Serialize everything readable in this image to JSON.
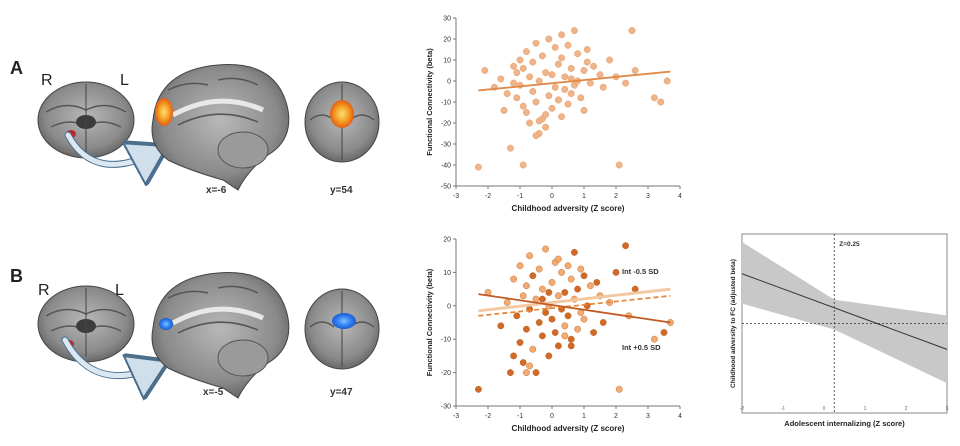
{
  "panels": [
    {
      "letter": "A",
      "left_label": "R",
      "right_label": "L",
      "sagittal_coord": "x=-6",
      "coronal_coord": "y=54",
      "blob_colors": [
        "#f59a1e",
        "#f7c243",
        "#e25d16"
      ],
      "seed_color": "#c0282b"
    },
    {
      "letter": "B",
      "left_label": "R",
      "right_label": "L",
      "sagittal_coord": "x=-5",
      "coronal_coord": "y=47",
      "blob_colors": [
        "#2f7ef2",
        "#4fa3ff",
        "#1b5fd0"
      ],
      "seed_color": "#c0282b"
    }
  ],
  "chart_data": [
    {
      "type": "scatter",
      "xlabel": "Childhood adversity (Z score)",
      "ylabel": "Functional Connectivity (beta)",
      "xlim": [
        -3,
        4
      ],
      "ylim": [
        -50,
        30
      ],
      "xticks": [
        "-3",
        "-2",
        "-1",
        "0",
        "1",
        "2",
        "3",
        "4"
      ],
      "yticks": [
        "30",
        "20",
        "10",
        "0",
        "-10",
        "-20",
        "-30",
        "-40",
        "-50"
      ],
      "point_color": "#f0b48a",
      "line_color": "#e08a4a",
      "fit": {
        "x": [
          -2.3,
          3.7
        ],
        "y": [
          -4.5,
          4.5
        ]
      },
      "x": [
        -2.3,
        -2.1,
        -1.8,
        -1.6,
        -1.5,
        -1.4,
        -1.3,
        -1.2,
        -1.2,
        -1.1,
        -1.0,
        -1.0,
        -0.9,
        -0.9,
        -0.8,
        -0.8,
        -0.7,
        -0.7,
        -0.6,
        -0.6,
        -0.5,
        -0.5,
        -0.4,
        -0.4,
        -0.3,
        -0.3,
        -0.2,
        -0.2,
        -0.1,
        -0.1,
        0.0,
        0.0,
        0.1,
        0.1,
        0.2,
        0.2,
        0.3,
        0.3,
        0.4,
        0.4,
        0.5,
        0.5,
        0.6,
        0.6,
        0.7,
        0.7,
        0.8,
        0.8,
        0.9,
        1.0,
        1.0,
        1.1,
        1.2,
        1.3,
        1.5,
        1.6,
        1.8,
        2.0,
        2.1,
        2.3,
        2.5,
        2.6,
        3.2,
        3.4,
        3.6,
        -0.9,
        -0.5,
        -0.2,
        0.3,
        0.6,
        1.1,
        -1.1,
        -0.4,
        0.2
      ],
      "y": [
        -41,
        5,
        -3,
        1,
        -14,
        -6,
        -32,
        -1,
        7,
        -8,
        10,
        -2,
        6,
        -12,
        -15,
        14,
        2,
        -20,
        9,
        -5,
        18,
        -10,
        0,
        -25,
        12,
        -18,
        4,
        -22,
        20,
        -7,
        3,
        -13,
        16,
        -3,
        -9,
        8,
        -17,
        11,
        -4,
        2,
        17,
        -11,
        6,
        -6,
        24,
        -2,
        13,
        0,
        -8,
        5,
        -14,
        15,
        -1,
        7,
        3,
        -3,
        10,
        2,
        -40,
        -1,
        24,
        5,
        -8,
        -10,
        0,
        -40,
        -26,
        -16,
        22,
        1,
        9,
        4,
        -19,
        -9
      ]
    },
    {
      "type": "scatter",
      "xlabel": "Childhood adversity (Z score)",
      "ylabel": "Functional Connectivity (beta)",
      "xlim": [
        -3,
        4
      ],
      "ylim": [
        -30,
        20
      ],
      "xticks": [
        "-3",
        "-2",
        "-1",
        "0",
        "1",
        "2",
        "3",
        "4"
      ],
      "yticks": [
        "20",
        "10",
        "0",
        "-10",
        "-20",
        "-30"
      ],
      "point_colors": [
        "#d06a26",
        "#f2ab72"
      ],
      "annotations": [
        "Int -0.5 SD",
        "Int +0.5 SD"
      ],
      "fits": [
        {
          "name": "Int -0.5 SD",
          "x": [
            -2.3,
            3.7
          ],
          "y": [
            -1.5,
            5
          ],
          "color": "#f3c9a3",
          "style": "solid"
        },
        {
          "name": "Int -0.5 SD",
          "x": [
            -2.3,
            3.7
          ],
          "y": [
            -3,
            3
          ],
          "color": "#e8893e",
          "style": "dashed"
        },
        {
          "name": "Int +0.5 SD",
          "x": [
            -2.3,
            3.7
          ],
          "y": [
            3.5,
            -5
          ],
          "color": "#c05a22",
          "style": "solid"
        }
      ],
      "x": [
        -2.3,
        -2.0,
        -1.6,
        -1.4,
        -1.3,
        -1.2,
        -1.1,
        -1.0,
        -1.0,
        -0.9,
        -0.9,
        -0.8,
        -0.8,
        -0.7,
        -0.7,
        -0.6,
        -0.6,
        -0.5,
        -0.5,
        -0.4,
        -0.4,
        -0.3,
        -0.3,
        -0.2,
        -0.2,
        -0.1,
        -0.1,
        0.0,
        0.0,
        0.1,
        0.1,
        0.2,
        0.2,
        0.3,
        0.3,
        0.4,
        0.4,
        0.5,
        0.5,
        0.6,
        0.6,
        0.7,
        0.7,
        0.8,
        0.8,
        0.9,
        1.0,
        1.0,
        1.1,
        1.2,
        1.3,
        1.5,
        1.6,
        1.8,
        2.0,
        2.1,
        2.3,
        2.4,
        2.6,
        3.2,
        3.5,
        3.7,
        -1.2,
        -0.7,
        -0.3,
        0.2,
        0.6,
        0.9,
        1.4,
        -0.8,
        -0.1,
        0.4
      ],
      "y": [
        -25,
        4,
        -6,
        1,
        -20,
        8,
        -3,
        12,
        -11,
        3,
        -17,
        6,
        -7,
        15,
        -1,
        -13,
        9,
        2,
        -20,
        11,
        -5,
        5,
        -9,
        17,
        -2,
        0,
        -15,
        7,
        -4,
        13,
        -8,
        3,
        -12,
        10,
        -1,
        -6,
        4,
        12,
        -3,
        8,
        -10,
        2,
        16,
        -7,
        5,
        -2,
        9,
        -4,
        0,
        6,
        -8,
        3,
        -5,
        1,
        10,
        -25,
        18,
        -3,
        5,
        -10,
        -8,
        -5,
        -15,
        -18,
        2,
        14,
        -12,
        11,
        7,
        -20,
        4,
        -9
      ]
    },
    {
      "type": "line",
      "xlabel": "Adolescent internalizing (Z score)",
      "ylabel": "Childhood adversity to FC (adjusted beta)",
      "xlim": [
        -2,
        3
      ],
      "ylim": [
        -0.45,
        0.45
      ],
      "xticks": [
        "-2",
        "-1",
        "0",
        "1",
        "2",
        "3"
      ],
      "annotation": "Z=0.25",
      "vline_x": 0.25,
      "hline_y": 0,
      "line": {
        "x": [
          -2,
          3
        ],
        "y": [
          0.25,
          -0.13
        ]
      },
      "band": {
        "x": [
          -2,
          0.25,
          3
        ],
        "upper": [
          0.41,
          0.12,
          0.04
        ],
        "lower": [
          0.1,
          -0.03,
          -0.3
        ]
      },
      "band_color": "#c8c8c8"
    }
  ]
}
